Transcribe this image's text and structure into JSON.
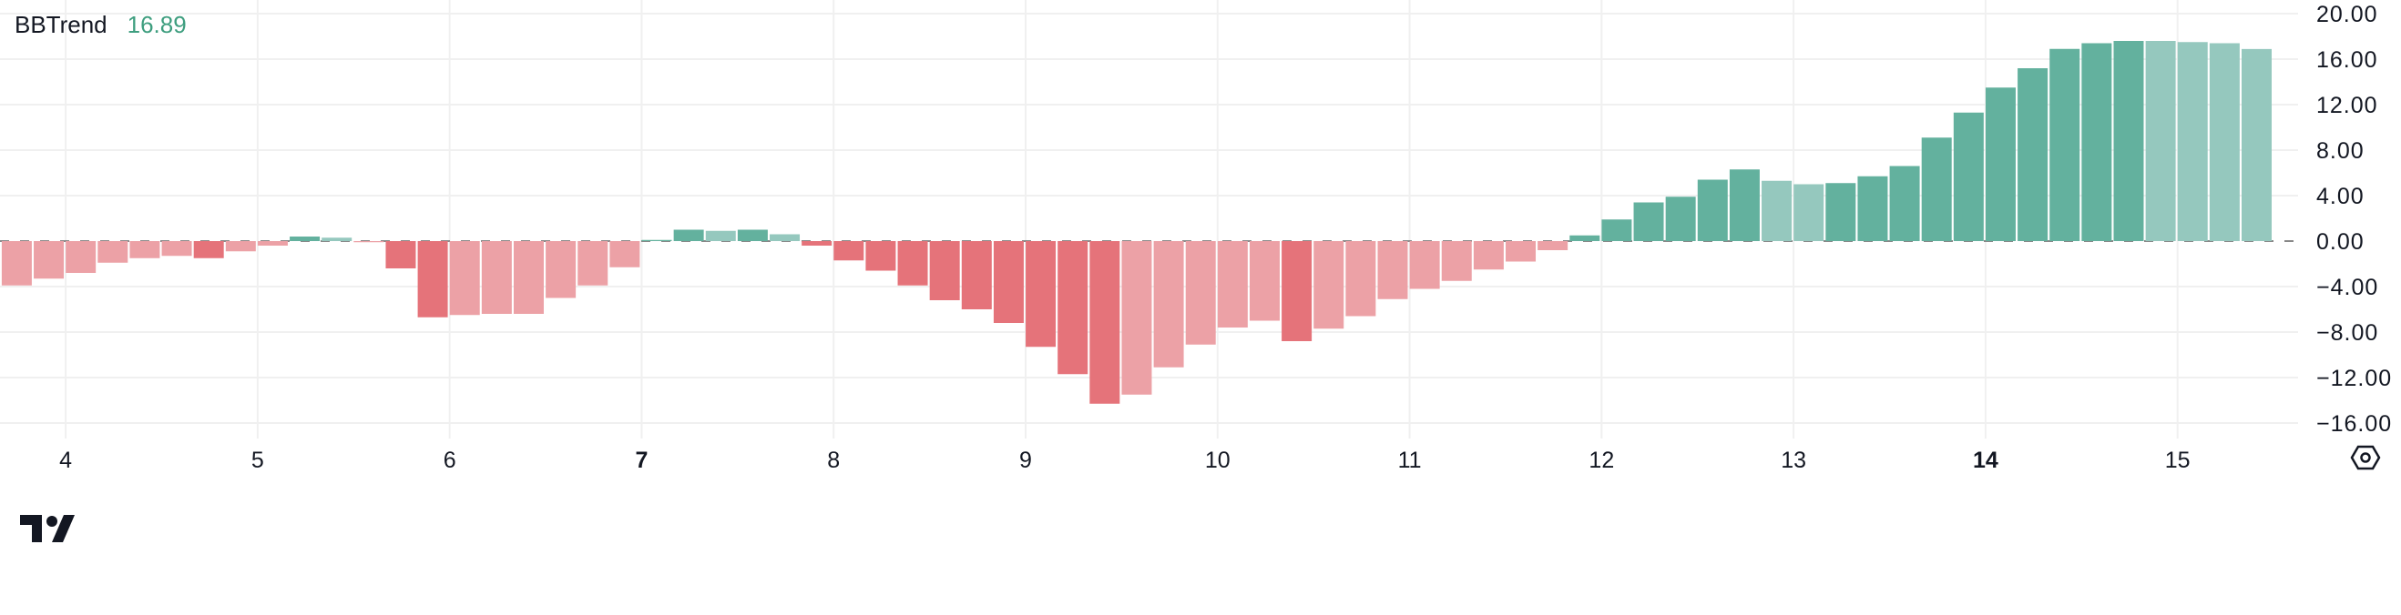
{
  "legend": {
    "name": "BBTrend",
    "value": "16.89"
  },
  "colors": {
    "up_strong": "#63b19e",
    "up_weak": "#95c8be",
    "down_strong": "#e5737a",
    "down_weak": "#eca1a6",
    "grid": "#f0f0f0",
    "zero_line": "#888888",
    "text": "#131722",
    "legend_value": "#3e9e7f"
  },
  "icons": {
    "logo": "tradingview-logo",
    "settings": "settings-hexagon-icon"
  },
  "chart_data": {
    "type": "bar",
    "title": "BBTrend",
    "ylim": [
      -17.8,
      20.6
    ],
    "yticks": [
      "20.00",
      "16.00",
      "12.00",
      "8.00",
      "4.00",
      "0.00",
      "−4.00",
      "−8.00",
      "−12.00",
      "−16.00"
    ],
    "ytick_values": [
      20,
      16,
      12,
      8,
      4,
      0,
      -4,
      -8,
      -12,
      -16
    ],
    "xticks": [
      {
        "label": "4",
        "bar": 2,
        "bold": false
      },
      {
        "label": "5",
        "bar": 8,
        "bold": false
      },
      {
        "label": "6",
        "bar": 14,
        "bold": false
      },
      {
        "label": "7",
        "bar": 20,
        "bold": true
      },
      {
        "label": "8",
        "bar": 26,
        "bold": false
      },
      {
        "label": "9",
        "bar": 32,
        "bold": false
      },
      {
        "label": "10",
        "bar": 38,
        "bold": false
      },
      {
        "label": "11",
        "bar": 44,
        "bold": false
      },
      {
        "label": "12",
        "bar": 50,
        "bold": false
      },
      {
        "label": "13",
        "bar": 56,
        "bold": false
      },
      {
        "label": "14",
        "bar": 62,
        "bold": true
      },
      {
        "label": "15",
        "bar": 68,
        "bold": false
      }
    ],
    "grid": true,
    "zero_line": "dashed",
    "values": [
      -3.9,
      -3.3,
      -2.8,
      -1.9,
      -1.5,
      -1.3,
      -1.5,
      -0.9,
      -0.4,
      0.4,
      0.3,
      -0.1,
      -2.4,
      -6.7,
      -6.5,
      -6.4,
      -6.4,
      -5.0,
      -3.9,
      -2.3,
      0.1,
      1.0,
      0.9,
      1.0,
      0.6,
      -0.4,
      -1.7,
      -2.6,
      -3.9,
      -5.2,
      -6.0,
      -7.2,
      -9.3,
      -11.7,
      -14.3,
      -13.5,
      -11.1,
      -9.1,
      -7.6,
      -7.0,
      -8.8,
      -7.7,
      -6.6,
      -5.1,
      -4.2,
      -3.5,
      -2.5,
      -1.8,
      -0.8,
      0.5,
      1.9,
      3.4,
      3.9,
      5.4,
      6.3,
      5.3,
      5.0,
      5.1,
      5.7,
      6.6,
      9.1,
      11.3,
      13.5,
      15.2,
      16.9,
      17.4,
      17.6,
      17.6,
      17.5,
      17.4,
      16.89
    ],
    "strength": [
      "w",
      "w",
      "w",
      "w",
      "w",
      "w",
      "s",
      "w",
      "w",
      "s",
      "w",
      "w",
      "s",
      "s",
      "w",
      "w",
      "w",
      "w",
      "w",
      "w",
      "s",
      "s",
      "w",
      "s",
      "w",
      "s",
      "s",
      "s",
      "s",
      "s",
      "s",
      "s",
      "s",
      "s",
      "s",
      "w",
      "w",
      "w",
      "w",
      "w",
      "s",
      "w",
      "w",
      "w",
      "w",
      "w",
      "w",
      "w",
      "w",
      "s",
      "s",
      "s",
      "s",
      "s",
      "s",
      "w",
      "w",
      "s",
      "s",
      "s",
      "s",
      "s",
      "s",
      "s",
      "s",
      "s",
      "s",
      "w",
      "w",
      "w",
      "w"
    ]
  }
}
